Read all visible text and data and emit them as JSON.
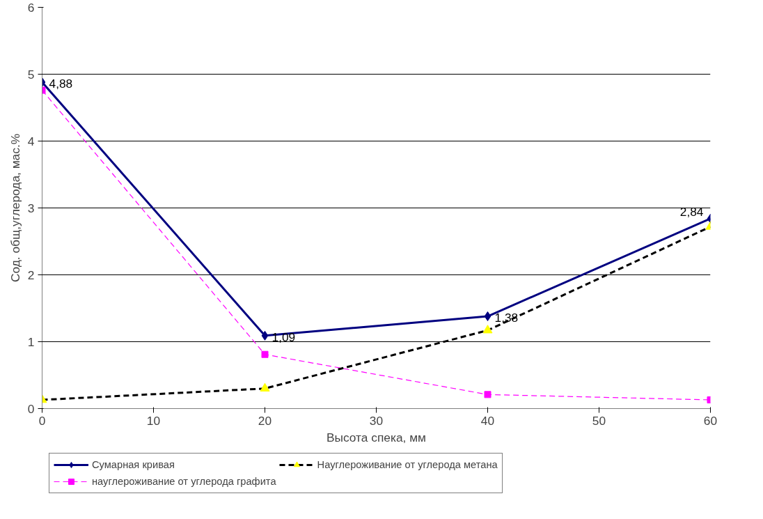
{
  "chart_data": {
    "type": "line",
    "xlabel": "Высота спека, мм",
    "ylabel": "Сод. общ,углерода, мас.%",
    "x": [
      0,
      20,
      40,
      60
    ],
    "xlim": [
      0,
      60
    ],
    "xticks": [
      0,
      10,
      20,
      30,
      40,
      50,
      60
    ],
    "ylim": [
      0,
      6
    ],
    "yticks": [
      0,
      1,
      2,
      3,
      4,
      5,
      6
    ],
    "grid": "y",
    "legend": "bottom",
    "series": [
      {
        "name": "Сумарная кривая",
        "color": "#000080",
        "values": [
          4.88,
          1.09,
          1.38,
          2.84
        ],
        "marker": "diamond",
        "line_style": "solid",
        "value_labels": [
          "4,88",
          "1,09",
          "1,38",
          "2,84"
        ]
      },
      {
        "name": "науглероживание от углерода графита",
        "color": "#ff00ff",
        "values": [
          4.76,
          0.81,
          0.21,
          0.13
        ],
        "marker": "square",
        "line_style": "dashed"
      },
      {
        "name": "Науглероживание от углерода метана",
        "color": "#000000",
        "colors": [
          "#ffff00",
          "#ffff00",
          "#ffff00",
          "#ffff00"
        ],
        "values": [
          0.13,
          0.3,
          1.17,
          2.72
        ],
        "marker": "triangle",
        "line_style": "dashed"
      }
    ]
  }
}
